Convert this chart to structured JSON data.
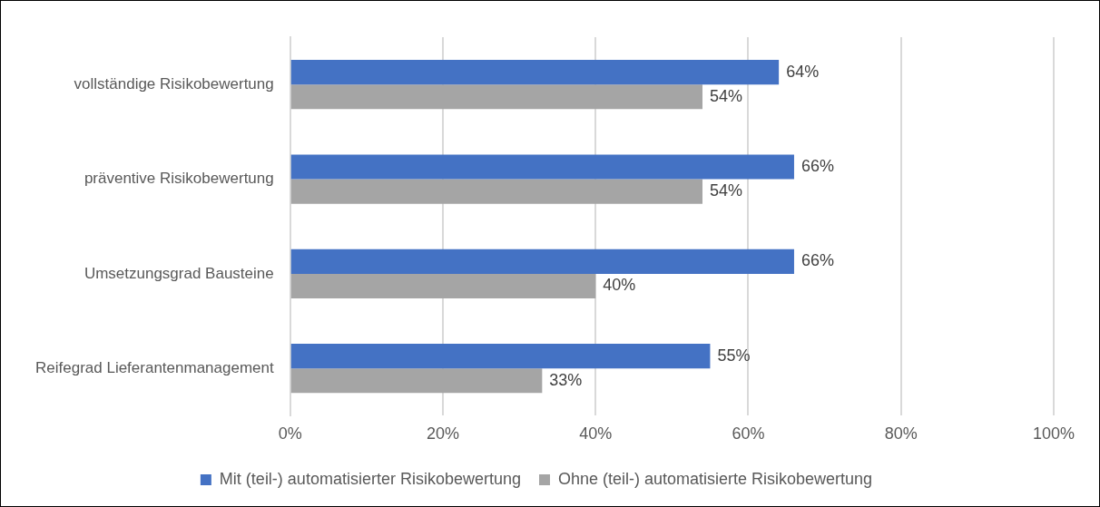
{
  "chart_data": {
    "type": "bar",
    "orientation": "horizontal",
    "categories": [
      "vollständige Risikobewertung",
      "präventive Risikobewertung",
      "Umsetzungsgrad Bausteine",
      "Reifegrad Lieferantenmanagement"
    ],
    "series": [
      {
        "name": "Mit (teil-) automatisierter Risikobewertung",
        "color": "#4472c4",
        "values": [
          64,
          66,
          66,
          55
        ],
        "value_labels": [
          "64%",
          "66%",
          "66%",
          "55%"
        ]
      },
      {
        "name": "Ohne (teil-) automatisierte Risikobewertung",
        "color": "#a5a5a5",
        "values": [
          54,
          54,
          40,
          33
        ],
        "value_labels": [
          "54%",
          "54%",
          "40%",
          "33%"
        ]
      }
    ],
    "xlim": [
      0,
      100
    ],
    "xticks": [
      {
        "value": 0,
        "label": "0%"
      },
      {
        "value": 20,
        "label": "20%"
      },
      {
        "value": 40,
        "label": "40%"
      },
      {
        "value": 60,
        "label": "60%"
      },
      {
        "value": 80,
        "label": "80%"
      },
      {
        "value": 100,
        "label": "100%"
      }
    ],
    "grid": "x",
    "legend": "bottom"
  }
}
